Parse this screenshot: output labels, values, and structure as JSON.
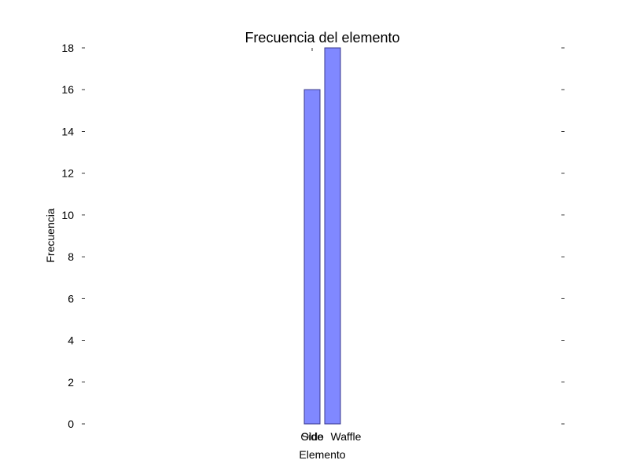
{
  "chart_data": {
    "type": "bar",
    "title": "Frecuencia del elemento",
    "xlabel": "Elemento",
    "ylabel": "Frecuencia",
    "categories": [
      "Side",
      "Waffle"
    ],
    "values": [
      16,
      18
    ],
    "overlapping_category_label": "Oldo",
    "ylim": [
      0,
      18
    ],
    "yticks": [
      0,
      2,
      4,
      6,
      8,
      10,
      12,
      14,
      16,
      18
    ],
    "grid": false,
    "legend": "none",
    "colors": {
      "bar_fill": "#8088ff",
      "bar_stroke": "#3a3a8c",
      "axis": "#000000"
    }
  }
}
